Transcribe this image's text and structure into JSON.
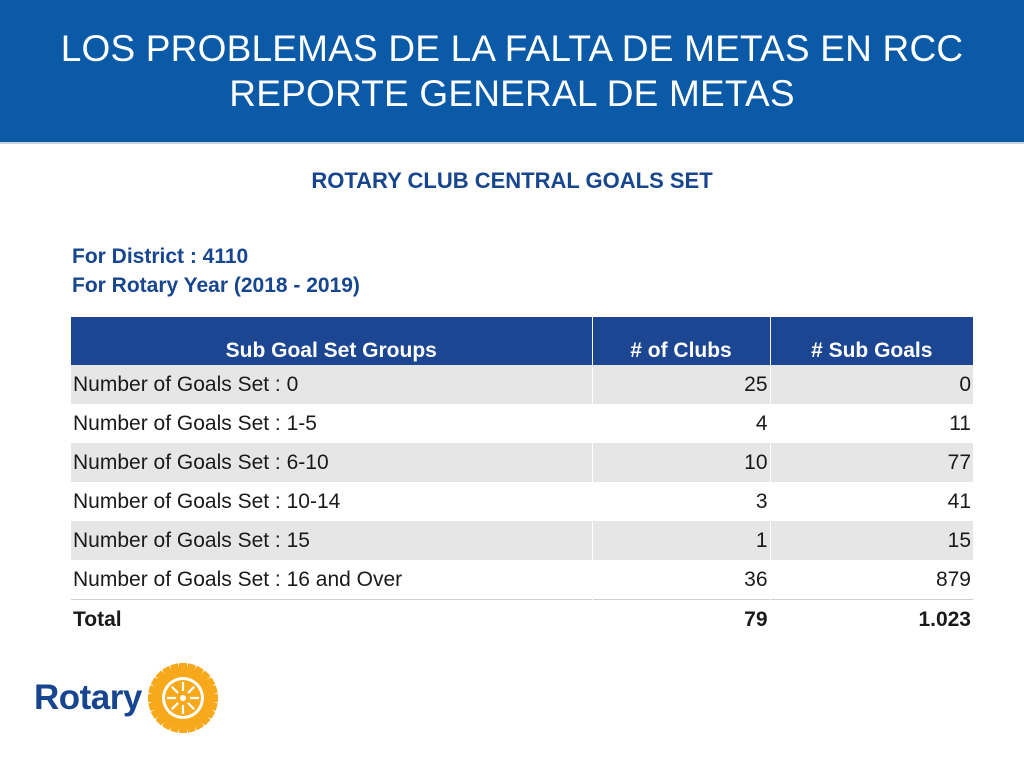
{
  "header": {
    "title_line1": "LOS PROBLEMAS DE LA FALTA DE METAS EN RCC",
    "title_line2": "REPORTE GENERAL DE METAS"
  },
  "subtitle": "ROTARY CLUB CENTRAL GOALS SET",
  "meta": {
    "district": "For District : 4110",
    "rotary_year": "For Rotary Year (2018 - 2019)"
  },
  "table": {
    "columns": [
      "Sub Goal Set Groups",
      "# of Clubs",
      "# Sub Goals"
    ],
    "rows": [
      {
        "group": "Number of Goals Set : 0",
        "clubs": "25",
        "sub_goals": "0"
      },
      {
        "group": "Number of Goals Set : 1-5",
        "clubs": "4",
        "sub_goals": "11"
      },
      {
        "group": "Number of Goals Set : 6-10",
        "clubs": "10",
        "sub_goals": "77"
      },
      {
        "group": "Number of Goals Set : 10-14",
        "clubs": "3",
        "sub_goals": "41"
      },
      {
        "group": "Number of Goals Set : 15",
        "clubs": "1",
        "sub_goals": "15"
      },
      {
        "group": "Number of Goals Set : 16 and Over",
        "clubs": "36",
        "sub_goals": "879"
      }
    ],
    "total": {
      "label": "Total",
      "clubs": "79",
      "sub_goals": "1.023"
    }
  },
  "logo": {
    "wordmark": "Rotary",
    "icon": "rotary-wheel-icon",
    "brand_blue": "#17458f",
    "brand_gold": "#f7a81b"
  }
}
